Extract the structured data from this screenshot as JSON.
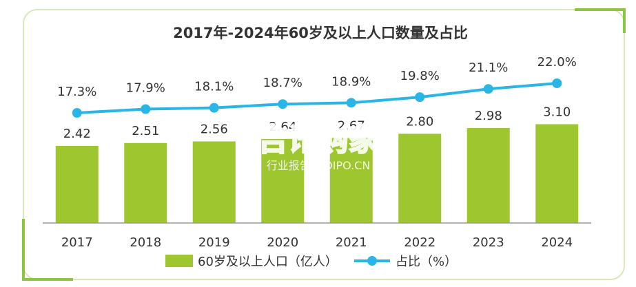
{
  "chart_data": {
    "type": "bar",
    "title": "2017年-2024年60岁及以上人口数量及占比",
    "categories": [
      "2017",
      "2018",
      "2019",
      "2020",
      "2021",
      "2022",
      "2023",
      "2024"
    ],
    "series": [
      {
        "name": "60岁及以上人口（亿人）",
        "type": "bar",
        "color": "#9ec62e",
        "values": [
          2.42,
          2.51,
          2.56,
          2.64,
          2.67,
          2.8,
          2.98,
          3.1
        ],
        "labels": [
          "2.42",
          "2.51",
          "2.56",
          "2.64",
          "2.67",
          "2.80",
          "2.98",
          "3.10"
        ]
      },
      {
        "name": "占比（%）",
        "type": "line",
        "color": "#29b6e6",
        "values": [
          17.3,
          17.9,
          18.1,
          18.7,
          18.9,
          19.8,
          21.1,
          22.0
        ],
        "labels": [
          "17.3%",
          "17.9%",
          "18.1%",
          "18.7%",
          "18.9%",
          "19.8%",
          "21.1%",
          "22.0%"
        ]
      }
    ],
    "grid": false,
    "legend": "bottom"
  },
  "watermark": {
    "main": "吉讯购家",
    "sub": "行业报告 IPOIPO.CN"
  },
  "colors": {
    "frame": "#d9e8b8",
    "accent": "#8cc63f",
    "axis": "#999999"
  }
}
